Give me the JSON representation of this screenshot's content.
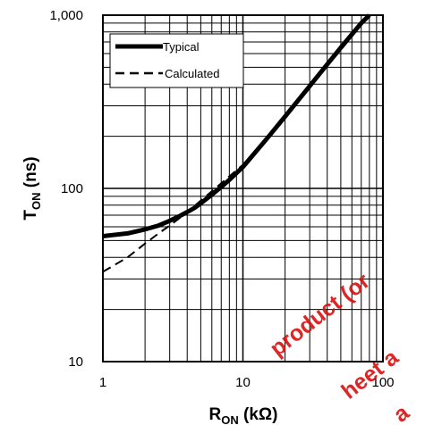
{
  "chart_data": {
    "type": "line",
    "title": "",
    "xlabel": "R",
    "xlabel_sub": "ON",
    "xlabel_unit": " (kΩ)",
    "ylabel": "T",
    "ylabel_sub": "ON",
    "ylabel_unit": " (ns)",
    "x_scale": "log",
    "y_scale": "log",
    "xlim": [
      1,
      100
    ],
    "ylim": [
      10,
      1000
    ],
    "x_ticks": [
      1,
      10,
      100
    ],
    "x_tick_labels": [
      "1",
      "10",
      "100"
    ],
    "y_ticks": [
      10,
      100,
      1000
    ],
    "y_tick_labels": [
      "10",
      "100",
      "1,000"
    ],
    "grid": true,
    "legend_placement": "top-left",
    "series": [
      {
        "name": "Typical",
        "style": "solid",
        "x": [
          1,
          1.5,
          2,
          2.5,
          3,
          3.5,
          4,
          4.5,
          5,
          6,
          7,
          8,
          10,
          15,
          20,
          30,
          40,
          50,
          60,
          70,
          80
        ],
        "y": [
          53,
          55,
          58,
          61,
          65,
          69,
          73,
          77,
          82,
          92,
          102,
          112,
          133,
          196,
          260,
          390,
          520,
          650,
          775,
          900,
          1000
        ]
      },
      {
        "name": "Calculated",
        "style": "dashed",
        "x": [
          1,
          1.5,
          2,
          2.5,
          3,
          3.5,
          4,
          5,
          7,
          10,
          20,
          30,
          50,
          70,
          80
        ],
        "y": [
          33,
          40,
          48,
          55,
          61,
          67,
          73,
          85,
          107,
          137,
          260,
          385,
          630,
          880,
          1000
        ]
      }
    ]
  },
  "watermark": {
    "lines": [
      "product (or",
      "heet a",
      "a"
    ],
    "color": "#d81010"
  }
}
